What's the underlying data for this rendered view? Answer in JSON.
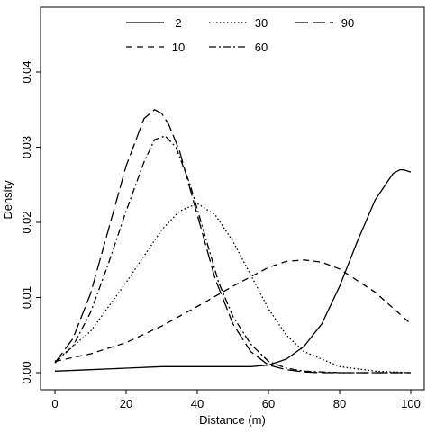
{
  "chart_data": {
    "type": "line",
    "title": "",
    "xlabel": "Distance (m)",
    "ylabel": "Density",
    "xlim": [
      0,
      100
    ],
    "ylim": [
      0,
      0.045
    ],
    "xticks": [
      0,
      20,
      40,
      60,
      80,
      100
    ],
    "xtick_labels": [
      "0",
      "20",
      "40",
      "60",
      "80",
      "100"
    ],
    "yticks": [
      0,
      0.01,
      0.02,
      0.03,
      0.04
    ],
    "ytick_labels": [
      "0.00",
      "0.01",
      "0.02",
      "0.03",
      "0.04"
    ],
    "grid": false,
    "legend_position": "top",
    "series": [
      {
        "name": "2",
        "dash": "solid",
        "x": [
          0,
          10,
          20,
          30,
          40,
          50,
          55,
          60,
          65,
          70,
          75,
          80,
          85,
          90,
          95,
          97,
          98,
          100
        ],
        "y": [
          0.0002,
          0.0004,
          0.0006,
          0.0008,
          0.0008,
          0.0008,
          0.0008,
          0.001,
          0.0018,
          0.0035,
          0.0065,
          0.0115,
          0.0175,
          0.023,
          0.0265,
          0.027,
          0.027,
          0.0267
        ]
      },
      {
        "name": "10",
        "dash": "dashed",
        "x": [
          0,
          10,
          20,
          30,
          40,
          50,
          60,
          65,
          70,
          75,
          80,
          90,
          100
        ],
        "y": [
          0.0015,
          0.0025,
          0.004,
          0.0062,
          0.0088,
          0.0115,
          0.014,
          0.0148,
          0.015,
          0.0147,
          0.0138,
          0.0107,
          0.0065
        ]
      },
      {
        "name": "30",
        "dash": "dotted",
        "x": [
          0,
          10,
          20,
          30,
          35,
          40,
          45,
          50,
          55,
          60,
          65,
          70,
          80,
          90,
          100
        ],
        "y": [
          0.0015,
          0.0055,
          0.012,
          0.019,
          0.0215,
          0.0225,
          0.021,
          0.0175,
          0.013,
          0.0085,
          0.005,
          0.0028,
          0.0008,
          0.0002,
          0.0
        ]
      },
      {
        "name": "60",
        "dash": "dot-dash",
        "x": [
          0,
          5,
          10,
          15,
          20,
          25,
          28,
          31,
          34,
          38,
          42,
          46,
          50,
          55,
          60,
          65,
          70,
          75,
          80,
          90,
          100
        ],
        "y": [
          0.0013,
          0.0035,
          0.008,
          0.0145,
          0.0215,
          0.028,
          0.031,
          0.0315,
          0.03,
          0.025,
          0.0185,
          0.012,
          0.0075,
          0.0038,
          0.0015,
          0.0006,
          0.0002,
          0.0001,
          0.0,
          0.0,
          0.0
        ]
      },
      {
        "name": "90",
        "dash": "long-dash",
        "x": [
          0,
          5,
          10,
          15,
          20,
          25,
          28,
          30,
          32,
          35,
          40,
          45,
          50,
          55,
          60,
          65,
          70,
          75,
          80,
          90,
          100
        ],
        "y": [
          0.0013,
          0.0045,
          0.0105,
          0.019,
          0.0275,
          0.0338,
          0.035,
          0.0345,
          0.033,
          0.0295,
          0.021,
          0.0125,
          0.0065,
          0.0028,
          0.001,
          0.0004,
          0.0001,
          0.0,
          0.0,
          0.0,
          0.0
        ]
      }
    ]
  }
}
